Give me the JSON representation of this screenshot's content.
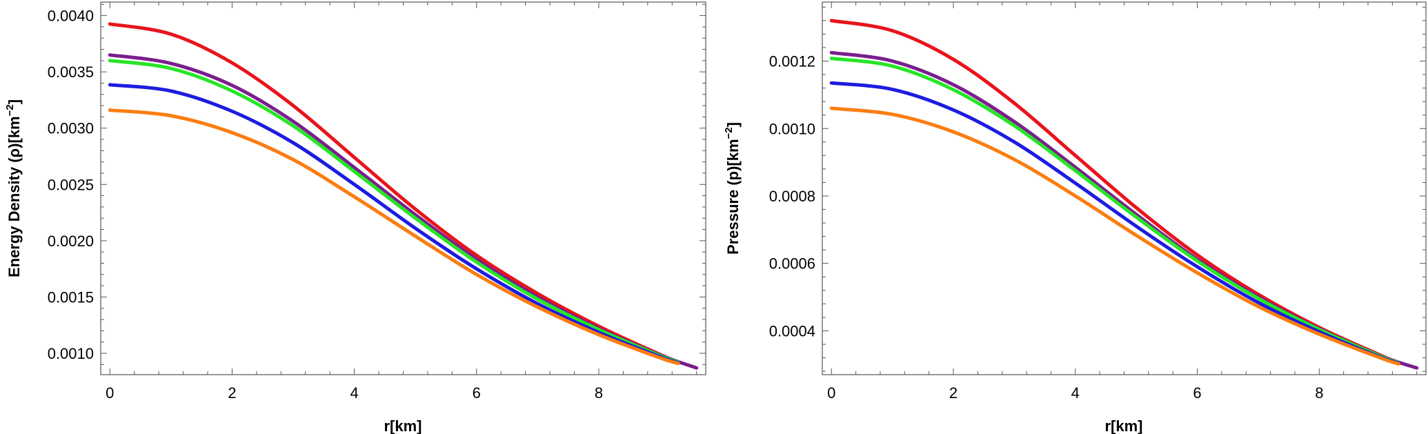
{
  "colors": {
    "red": "#e8141c",
    "purple": "#7a1e8e",
    "green": "#26e526",
    "blue": "#1c1ce0",
    "orange": "#fb7d10"
  },
  "chart_data": [
    {
      "type": "line",
      "xlabel": "r[km]",
      "ylabel_main": "Energy Density (ρ)[km",
      "ylabel_sup": "−2",
      "ylabel_tail": "]",
      "xlim": [
        -0.15,
        9.75
      ],
      "ylim": [
        0.00081,
        0.00412
      ],
      "xticks": [
        0,
        2,
        4,
        6,
        8
      ],
      "xtick_labels": [
        "0",
        "2",
        "4",
        "6",
        "8"
      ],
      "yticks": [
        0.001,
        0.0015,
        0.002,
        0.0025,
        0.003,
        0.0035,
        0.004
      ],
      "ytick_labels": [
        "0.0010",
        "0.0015",
        "0.0020",
        "0.0025",
        "0.0030",
        "0.0035",
        "0.0040"
      ],
      "series": [
        {
          "color": "#e8141c",
          "x": [
            0,
            1,
            2,
            3,
            4,
            5,
            6,
            7,
            8,
            9,
            9.3
          ],
          "y": [
            0.003925,
            0.003835,
            0.00358,
            0.0032,
            0.00274,
            0.00228,
            0.00187,
            0.00153,
            0.00124,
            0.00099,
            0.00092
          ]
        },
        {
          "color": "#7a1e8e",
          "x": [
            0,
            1,
            2,
            3,
            4,
            5,
            6,
            7,
            8,
            9,
            9.6
          ],
          "y": [
            0.00365,
            0.003575,
            0.00338,
            0.00306,
            0.00265,
            0.00223,
            0.001835,
            0.0015,
            0.00122,
            0.000985,
            0.00087
          ]
        },
        {
          "color": "#26e526",
          "x": [
            0,
            1,
            2,
            3,
            4,
            5,
            6,
            7,
            8,
            9,
            9.3
          ],
          "y": [
            0.0036,
            0.00353,
            0.00333,
            0.00302,
            0.002615,
            0.0022,
            0.00181,
            0.00148,
            0.00121,
            0.00098,
            0.00092
          ]
        },
        {
          "color": "#1c1ce0",
          "x": [
            0,
            1,
            2,
            3,
            4,
            5,
            6,
            7,
            8,
            9,
            9.3
          ],
          "y": [
            0.003385,
            0.00333,
            0.00315,
            0.00287,
            0.0025,
            0.00211,
            0.00175,
            0.00144,
            0.001185,
            0.00097,
            0.000915
          ]
        },
        {
          "color": "#fb7d10",
          "x": [
            0,
            1,
            2,
            3,
            4,
            5,
            6,
            7,
            8,
            9,
            9.3
          ],
          "y": [
            0.00316,
            0.00311,
            0.00296,
            0.00272,
            0.00239,
            0.00204,
            0.0017,
            0.00141,
            0.001165,
            0.00096,
            0.00091
          ]
        }
      ]
    },
    {
      "type": "line",
      "xlabel": "r[km]",
      "ylabel_main": "Pressure (p)[km",
      "ylabel_sup": "−2",
      "ylabel_tail": "]",
      "xlim": [
        -0.15,
        9.75
      ],
      "ylim": [
        0.00027,
        0.001375
      ],
      "xticks": [
        0,
        2,
        4,
        6,
        8
      ],
      "xtick_labels": [
        "0",
        "2",
        "4",
        "6",
        "8"
      ],
      "yticks": [
        0.0004,
        0.0006,
        0.0008,
        0.001,
        0.0012
      ],
      "ytick_labels": [
        "0.0004",
        "0.0006",
        "0.0008",
        "0.0010",
        "0.0012"
      ],
      "series": [
        {
          "color": "#e8141c",
          "x": [
            0,
            1,
            2,
            3,
            4,
            5,
            6,
            7,
            8,
            9,
            9.3
          ],
          "y": [
            0.00132,
            0.00129,
            0.001205,
            0.001075,
            0.00092,
            0.000765,
            0.000625,
            0.000508,
            0.00041,
            0.000328,
            0.000305
          ]
        },
        {
          "color": "#7a1e8e",
          "x": [
            0,
            1,
            2,
            3,
            4,
            5,
            6,
            7,
            8,
            9,
            9.6
          ],
          "y": [
            0.001225,
            0.0012,
            0.00113,
            0.00102,
            0.000885,
            0.000745,
            0.000612,
            0.0005,
            0.000406,
            0.000326,
            0.00029
          ]
        },
        {
          "color": "#26e526",
          "x": [
            0,
            1,
            2,
            3,
            4,
            5,
            6,
            7,
            8,
            9,
            9.3
          ],
          "y": [
            0.001208,
            0.001185,
            0.001115,
            0.001008,
            0.000875,
            0.000737,
            0.000607,
            0.000496,
            0.000404,
            0.000325,
            0.000305
          ]
        },
        {
          "color": "#1c1ce0",
          "x": [
            0,
            1,
            2,
            3,
            4,
            5,
            6,
            7,
            8,
            9,
            9.3
          ],
          "y": [
            0.001135,
            0.001116,
            0.001055,
            0.00096,
            0.000838,
            0.00071,
            0.00059,
            0.000484,
            0.000397,
            0.000322,
            0.000304
          ]
        },
        {
          "color": "#fb7d10",
          "x": [
            0,
            1,
            2,
            3,
            4,
            5,
            6,
            7,
            8,
            9,
            9.3
          ],
          "y": [
            0.00106,
            0.001042,
            0.00099,
            0.000908,
            0.0008,
            0.000683,
            0.000572,
            0.000472,
            0.00039,
            0.00032,
            0.000302
          ]
        }
      ]
    }
  ]
}
